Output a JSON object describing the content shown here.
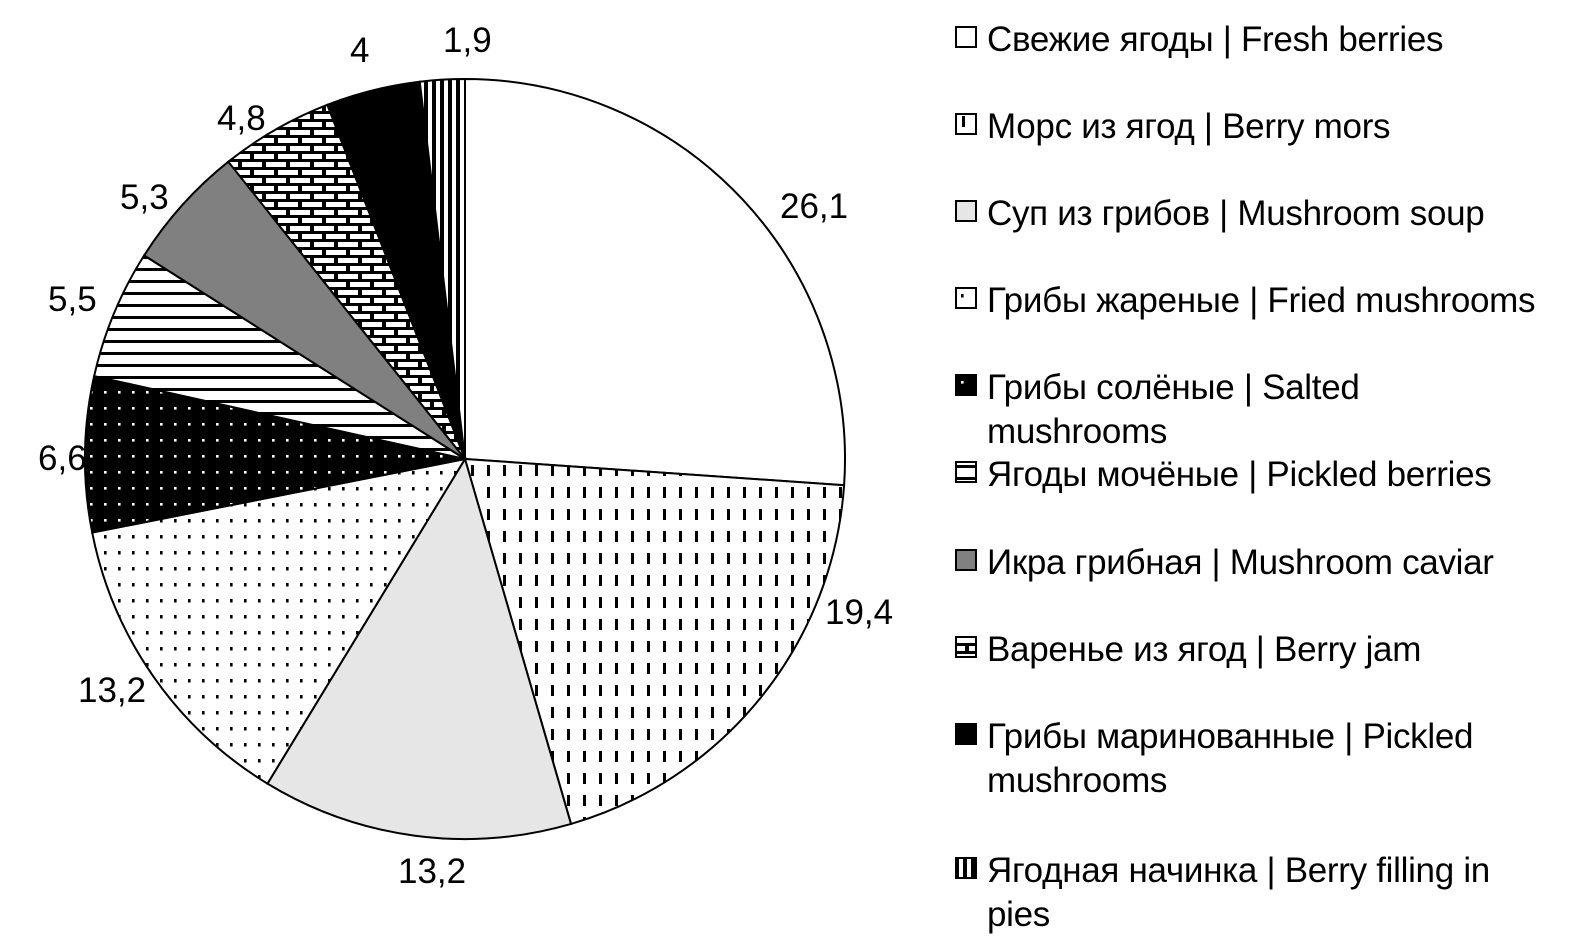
{
  "chart_data": {
    "type": "pie",
    "title": "",
    "slices": [
      {
        "label": "Свежие ягоды | Fresh berries",
        "value": 26.1,
        "display": "26,1",
        "pattern": "white"
      },
      {
        "label": "Морс из ягод | Berry mors",
        "value": 19.4,
        "display": "19,4",
        "pattern": "vdash"
      },
      {
        "label": "Суп из грибов | Mushroom soup",
        "value": 13.2,
        "display": "13,2",
        "pattern": "lightgray"
      },
      {
        "label": "Грибы жареные | Fried mushrooms",
        "value": 13.2,
        "display": "13,2",
        "pattern": "dots"
      },
      {
        "label": "Грибы солёные | Salted mushrooms",
        "value": 6.6,
        "display": "6,6",
        "pattern": "blackdots"
      },
      {
        "label": "Ягоды мочёные | Pickled berries",
        "value": 5.5,
        "display": "5,5",
        "pattern": "hlines"
      },
      {
        "label": "Икра грибная | Mushroom caviar",
        "value": 5.3,
        "display": "5,3",
        "pattern": "darkgray"
      },
      {
        "label": "Варенье из ягод | Berry jam",
        "value": 4.8,
        "display": "4,8",
        "pattern": "bricks"
      },
      {
        "label": "Грибы маринованные | Pickled mushrooms",
        "value": 4.0,
        "display": "4",
        "pattern": "black"
      },
      {
        "label": "Ягодная начинка | Berry filling in pies",
        "value": 1.9,
        "display": "1,9",
        "pattern": "vlines"
      }
    ],
    "start_angle": "12 o'clock",
    "direction": "clockwise",
    "legend_position": "right"
  },
  "legend": {
    "items": [
      {
        "text": "Свежие ягоды | Fresh berries",
        "pattern": "white"
      },
      {
        "text": "Морс из ягод | Berry mors",
        "pattern": "vdash"
      },
      {
        "text": "Суп из грибов | Mushroom soup",
        "pattern": "lightgray"
      },
      {
        "text": "Грибы жареные | Fried mushrooms",
        "pattern": "dots"
      },
      {
        "text": "Грибы солёные | Salted mushrooms",
        "pattern": "blackdots"
      },
      {
        "text": "Ягоды мочёные | Pickled berries",
        "pattern": "hlines"
      },
      {
        "text": "Икра грибная | Mushroom caviar",
        "pattern": "darkgray"
      },
      {
        "text": "Варенье из ягод | Berry jam",
        "pattern": "bricks"
      },
      {
        "text": "Грибы маринованные | Pickled mushrooms",
        "pattern": "black"
      },
      {
        "text": "Ягодная начинка | Berry filling in pies",
        "pattern": "vlines"
      }
    ]
  },
  "colors": {
    "outline": "#000000",
    "light_gray": "#e6e6e6",
    "dark_gray": "#808080",
    "background": "#ffffff"
  }
}
